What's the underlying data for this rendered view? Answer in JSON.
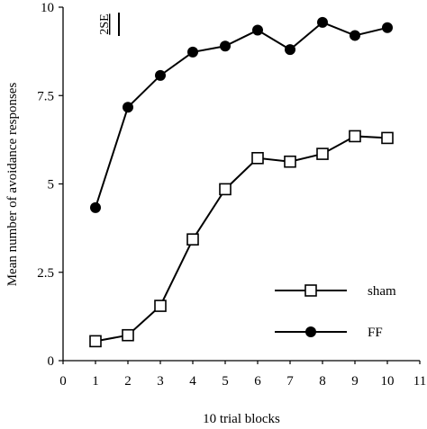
{
  "chart_data": {
    "type": "line",
    "title": "",
    "xlabel": "10 trial blocks",
    "ylabel": "Mean number of avoidance responses",
    "xlim": [
      0,
      11
    ],
    "ylim": [
      0,
      10
    ],
    "x_ticks": [
      0,
      1,
      2,
      3,
      4,
      5,
      6,
      7,
      8,
      9,
      10,
      11
    ],
    "y_ticks": [
      "0",
      "2.5",
      "5",
      "7.5",
      "10"
    ],
    "grid": false,
    "legend_position": "lower-right",
    "annotation": "2SE",
    "series": [
      {
        "name": "sham",
        "marker": "open-square",
        "x": [
          1,
          2,
          3,
          4,
          5,
          6,
          7,
          8,
          9,
          10
        ],
        "values": [
          0.55,
          0.72,
          1.55,
          3.43,
          4.85,
          5.73,
          5.63,
          5.85,
          6.35,
          6.3
        ]
      },
      {
        "name": "FF",
        "marker": "filled-circle",
        "x": [
          1,
          2,
          3,
          4,
          5,
          6,
          7,
          8,
          9,
          10
        ],
        "values": [
          4.33,
          7.17,
          8.07,
          8.73,
          8.9,
          9.35,
          8.8,
          9.57,
          9.2,
          9.42
        ]
      }
    ]
  }
}
